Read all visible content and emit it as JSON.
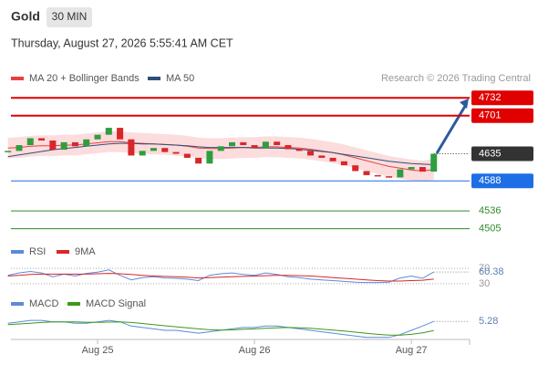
{
  "header": {
    "title": "Gold",
    "timeframe": "30 MIN",
    "timestamp": "Thursday, August 27, 2026 5:55:41 AM CET",
    "credit": "Research © 2026 Trading Central"
  },
  "chart_data": {
    "type": "candlestick",
    "categories": [
      null,
      null,
      null,
      null,
      null,
      null,
      null,
      null,
      "Aug 25",
      null,
      null,
      null,
      null,
      null,
      null,
      null,
      null,
      null,
      null,
      null,
      null,
      null,
      "Aug 26",
      null,
      null,
      null,
      null,
      null,
      null,
      null,
      null,
      null,
      null,
      null,
      null,
      null,
      "Aug 27",
      null,
      null
    ],
    "close": [
      4640,
      4650,
      4662,
      4658,
      4642,
      4655,
      4648,
      4660,
      4668,
      4680,
      4660,
      4632,
      4640,
      4645,
      4638,
      4635,
      4628,
      4618,
      4640,
      4648,
      4655,
      4650,
      4645,
      4656,
      4650,
      4643,
      4640,
      4632,
      4628,
      4622,
      4615,
      4605,
      4598,
      4596,
      4594,
      4608,
      4612,
      4604,
      4635
    ],
    "up_color": "#2e9e3e",
    "down_color": "#d8262b",
    "ylim": [
      4495,
      4745
    ],
    "series": [
      {
        "name": "MA 20 + Bollinger Bands",
        "color": "#e8403f",
        "band_color": "#fbd3d3",
        "values": [
          4645,
          4646,
          4648,
          4649,
          4649,
          4650,
          4650,
          4652,
          4654,
          4656,
          4656,
          4654,
          4653,
          4652,
          4651,
          4650,
          4648,
          4645,
          4644,
          4644,
          4645,
          4646,
          4646,
          4647,
          4647,
          4646,
          4645,
          4643,
          4640,
          4637,
          4633,
          4628,
          4623,
          4618,
          4613,
          4610,
          4607,
          4605,
          4608
        ],
        "upper": [
          4663,
          4664,
          4666,
          4667,
          4667,
          4668,
          4668,
          4670,
          4672,
          4674,
          4674,
          4672,
          4671,
          4670,
          4669,
          4668,
          4666,
          4663,
          4662,
          4662,
          4663,
          4664,
          4664,
          4665,
          4665,
          4664,
          4663,
          4661,
          4658,
          4655,
          4651,
          4646,
          4641,
          4636,
          4631,
          4628,
          4625,
          4623,
          4626
        ],
        "lower": [
          4627,
          4628,
          4630,
          4631,
          4631,
          4632,
          4632,
          4634,
          4636,
          4638,
          4638,
          4636,
          4635,
          4634,
          4633,
          4632,
          4630,
          4627,
          4626,
          4626,
          4627,
          4628,
          4628,
          4629,
          4629,
          4628,
          4627,
          4625,
          4622,
          4619,
          4615,
          4610,
          4605,
          4600,
          4595,
          4592,
          4589,
          4587,
          4590
        ]
      },
      {
        "name": "MA 50",
        "color": "#2c4f7c",
        "values": [
          4630,
          4633,
          4636,
          4639,
          4642,
          4644,
          4646,
          4648,
          4650,
          4652,
          4653,
          4653,
          4652,
          4652,
          4651,
          4650,
          4649,
          4647,
          4646,
          4646,
          4646,
          4646,
          4645,
          4645,
          4645,
          4644,
          4643,
          4641,
          4639,
          4637,
          4634,
          4631,
          4628,
          4625,
          4622,
          4620,
          4618,
          4617,
          4616
        ]
      }
    ],
    "levels": [
      {
        "value": 4732,
        "color": "#e00000",
        "style": "box"
      },
      {
        "value": 4701,
        "color": "#e00000",
        "style": "box"
      },
      {
        "value": 4635,
        "color": "#333333",
        "style": "last"
      },
      {
        "value": 4588,
        "color": "#1e6ee6",
        "style": "box"
      },
      {
        "value": 4536,
        "color": "#2e8b2e",
        "style": "text"
      },
      {
        "value": 4505,
        "color": "#2e8b2e",
        "style": "text"
      }
    ],
    "rsi": {
      "ylim": [
        25,
        75
      ],
      "yticks": [
        30,
        70
      ],
      "series": [
        {
          "name": "RSI",
          "color": "#5b8bd8",
          "values": [
            52,
            58,
            62,
            58,
            48,
            55,
            50,
            57,
            60,
            66,
            52,
            40,
            46,
            48,
            45,
            44,
            42,
            38,
            52,
            56,
            58,
            54,
            52,
            58,
            54,
            48,
            46,
            42,
            40,
            38,
            36,
            34,
            33,
            33,
            34,
            45,
            50,
            44,
            60.38
          ]
        },
        {
          "name": "9MA",
          "color": "#d8262b",
          "values": [
            50,
            52,
            54,
            55,
            55,
            55,
            55,
            55,
            56,
            57,
            56,
            54,
            52,
            50,
            49,
            48,
            47,
            45,
            46,
            47,
            48,
            49,
            50,
            51,
            52,
            52,
            51,
            50,
            48,
            46,
            44,
            42,
            40,
            38,
            37,
            37,
            38,
            39,
            42
          ]
        }
      ]
    },
    "macd": {
      "ylim": [
        -10,
        8
      ],
      "series": [
        {
          "name": "MACD",
          "color": "#5b8bd8",
          "values": [
            4,
            5,
            6,
            6,
            5,
            5,
            4,
            4,
            5,
            6,
            5,
            2,
            1,
            0,
            -1,
            -1,
            -2,
            -3,
            -2,
            -1,
            0,
            1,
            1,
            2,
            2,
            1,
            0,
            -1,
            -2,
            -3,
            -4,
            -5,
            -6,
            -6,
            -6,
            -4,
            -1,
            2,
            5.28
          ]
        },
        {
          "name": "MACD Signal",
          "color": "#3a9a1a",
          "values": [
            3,
            3.5,
            4,
            4.5,
            5,
            5,
            5,
            4.7,
            4.6,
            4.8,
            4.9,
            4.5,
            3.8,
            3,
            2.2,
            1.5,
            0.8,
            0,
            -0.6,
            -0.8,
            -0.7,
            -0.3,
            0,
            0.4,
            0.8,
            1,
            0.8,
            0.4,
            -0.2,
            -0.8,
            -1.5,
            -2.3,
            -3.1,
            -3.8,
            -4.4,
            -4.4,
            -3.8,
            -2.8,
            -1.2
          ]
        }
      ]
    }
  }
}
